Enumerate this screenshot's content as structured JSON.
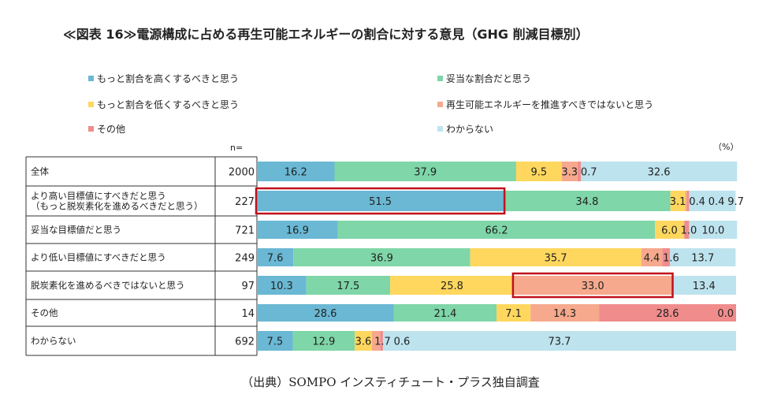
{
  "title": "≪図表 16≫電源構成に占める再生可能エネルギーの割合に対する意見（GHG 削減目標別）",
  "n_label": "n=",
  "unit_label": "（%）",
  "source": "（出典）SOMPO インスティチュート・プラス独自調査",
  "colors": {
    "more": "#6ab8d4",
    "appropriate": "#7fd6a8",
    "lower": "#ffd75e",
    "against": "#f6a98c",
    "other": "#f08c8c",
    "unknown": "#bde3ee",
    "highlight": "#c0111a",
    "grid": "#333333"
  },
  "chart_data": {
    "type": "bar",
    "stacked": true,
    "orientation": "horizontal",
    "xlim": [
      0,
      100
    ],
    "legend_position": "top",
    "categories": [
      {
        "label": "全体",
        "n": "2000"
      },
      {
        "label": "より高い目標値にすべきだと思う\n（もっと脱炭素化を進めるべきだと思う）",
        "n": "227"
      },
      {
        "label": "妥当な目標値だと思う",
        "n": "721"
      },
      {
        "label": "より低い目標値にすべきだと思う",
        "n": "249"
      },
      {
        "label": "脱炭素化を進めるべきではないと思う",
        "n": "97"
      },
      {
        "label": "その他",
        "n": "14"
      },
      {
        "label": "わからない",
        "n": "692"
      }
    ],
    "series": [
      {
        "name": "もっと割合を高くするべきと思う",
        "color_key": "more",
        "values": [
          16.2,
          51.5,
          16.9,
          7.6,
          10.3,
          28.6,
          7.5
        ]
      },
      {
        "name": "妥当な割合だと思う",
        "color_key": "appropriate",
        "values": [
          37.9,
          34.8,
          66.2,
          36.9,
          17.5,
          21.4,
          12.9
        ]
      },
      {
        "name": "もっと割合を低くするべきと思う",
        "color_key": "lower",
        "values": [
          9.5,
          3.1,
          6.0,
          35.7,
          25.8,
          7.1,
          3.6
        ]
      },
      {
        "name": "再生可能エネルギーを推進すべきではないと思う",
        "color_key": "against",
        "values": [
          3.3,
          0.4,
          0.1,
          4.4,
          33.0,
          14.3,
          1.7
        ]
      },
      {
        "name": "その他",
        "color_key": "other",
        "values": [
          0.7,
          0.4,
          1.0,
          1.6,
          0.0,
          28.6,
          0.6
        ]
      },
      {
        "name": "わからない",
        "color_key": "unknown",
        "values": [
          32.6,
          9.7,
          10.0,
          13.7,
          13.4,
          0.0,
          73.7
        ]
      }
    ],
    "data_labels": [
      [
        "16.2",
        "37.9",
        "9.5",
        "3.3",
        "0.7",
        "32.6"
      ],
      [
        "51.5",
        "34.8",
        "3.1",
        "0.4",
        "0.4",
        "9.7"
      ],
      [
        "16.9",
        "66.2",
        "6.0",
        "",
        "1.0",
        "10.0"
      ],
      [
        "7.6",
        "36.9",
        "35.7",
        "4.4",
        "1.6",
        "13.7"
      ],
      [
        "10.3",
        "17.5",
        "25.8",
        "33.0",
        "",
        "13.4"
      ],
      [
        "28.6",
        "21.4",
        "7.1",
        "14.3",
        "28.6",
        "0.0"
      ],
      [
        "7.5",
        "12.9",
        "3.6",
        "1.7",
        "0.6",
        "73.7"
      ]
    ],
    "highlights": [
      {
        "row": 1,
        "series": 0
      },
      {
        "row": 4,
        "series": 3
      }
    ]
  }
}
